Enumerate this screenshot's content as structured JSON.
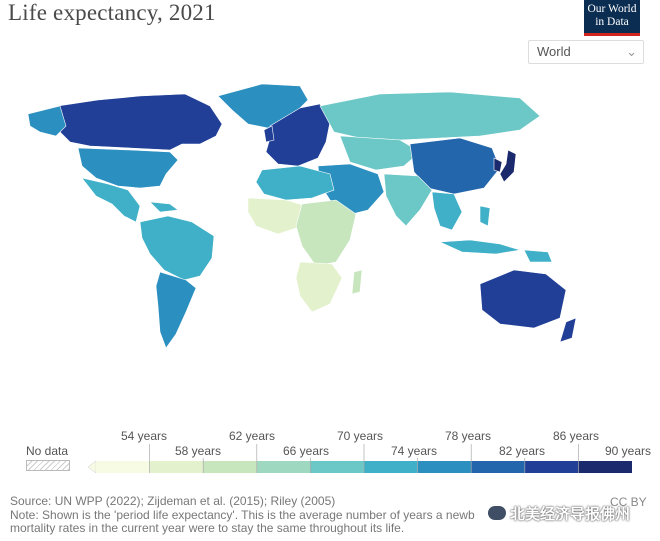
{
  "title": "Life expectancy, 2021",
  "logo": {
    "line1": "Our World",
    "line2": "in Data"
  },
  "entity_select": {
    "value": "World"
  },
  "legend": {
    "no_data_label": "No data",
    "top_labels": [
      "54 years",
      "62 years",
      "70 years",
      "78 years",
      "86 years"
    ],
    "bottom_labels": [
      "58 years",
      "66 years",
      "74 years",
      "82 years",
      "90 years"
    ],
    "colors": [
      "#f7fbe3",
      "#e3f1cc",
      "#c7e6bd",
      "#9fd8c1",
      "#6cc8c7",
      "#3fb0c7",
      "#2b8fc0",
      "#2466ac",
      "#213f97",
      "#1a2a6c"
    ]
  },
  "map": {
    "palette": {
      "ocean": "#ffffff",
      "land_default": "#6cc8c7",
      "north_america_high": "#213f97",
      "usa": "#2b8fc0",
      "mexico": "#3fb0c7",
      "latin": "#3fb0c7",
      "south_cone": "#2b8fc0",
      "europe": "#213f97",
      "russia": "#6cc8c7",
      "china": "#2466ac",
      "japan": "#1a2a6c",
      "africa_low": "#e3f1cc",
      "africa_mid": "#c7e6bd",
      "north_africa": "#3fb0c7",
      "middle_east": "#2b8fc0",
      "south_asia": "#6cc8c7",
      "se_asia": "#3fb0c7",
      "australia": "#213f97",
      "nz": "#213f97",
      "greenland": "#2b8fc0"
    }
  },
  "footer": {
    "source": "Source: UN WPP (2022); Zijdeman et al. (2015); Riley (2005)",
    "note_line1": "Note: Shown is the 'period life expectancy'. This is the average number of years a newb",
    "note_line2": "mortality rates in the current year were to stay the same throughout its life."
  },
  "license": "CC BY",
  "watermark": "北美经济导报佛州"
}
